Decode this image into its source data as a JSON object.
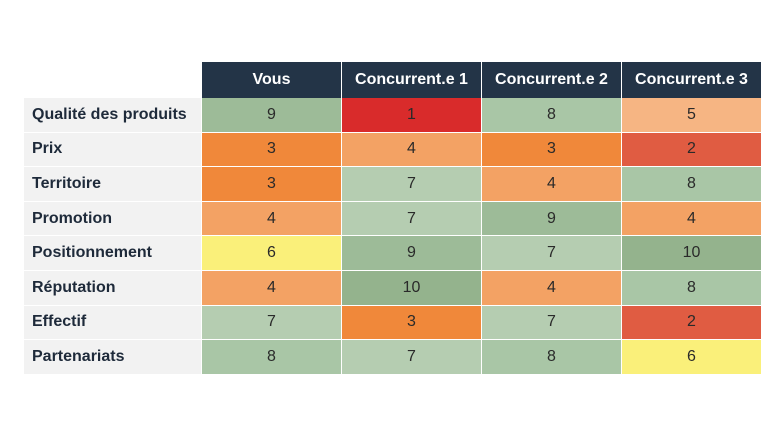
{
  "chart_data": {
    "type": "heatmap",
    "columns": [
      "Vous",
      "Concurrent.e 1",
      "Concurrent.e 2",
      "Concurrent.e 3"
    ],
    "rows": [
      {
        "label": "Qualité des produits",
        "values": [
          9,
          1,
          8,
          5
        ]
      },
      {
        "label": "Prix",
        "values": [
          3,
          4,
          3,
          2
        ]
      },
      {
        "label": "Territoire",
        "values": [
          3,
          7,
          4,
          8
        ]
      },
      {
        "label": "Promotion",
        "values": [
          4,
          7,
          9,
          4
        ]
      },
      {
        "label": "Positionnement",
        "values": [
          6,
          9,
          7,
          10
        ]
      },
      {
        "label": "Réputation",
        "values": [
          4,
          10,
          4,
          8
        ]
      },
      {
        "label": "Effectif",
        "values": [
          7,
          3,
          7,
          2
        ]
      },
      {
        "label": "Partenariats",
        "values": [
          8,
          7,
          8,
          6
        ]
      }
    ],
    "color_scale": {
      "1": "#d92b2b",
      "2": "#e05c42",
      "3": "#f0883a",
      "4": "#f3a264",
      "5": "#f6b583",
      "6": "#faf07a",
      "7": "#b5cdb1",
      "8": "#a9c6a6",
      "9": "#9dbb98",
      "10": "#94b38d"
    },
    "header_color": "#233447"
  }
}
